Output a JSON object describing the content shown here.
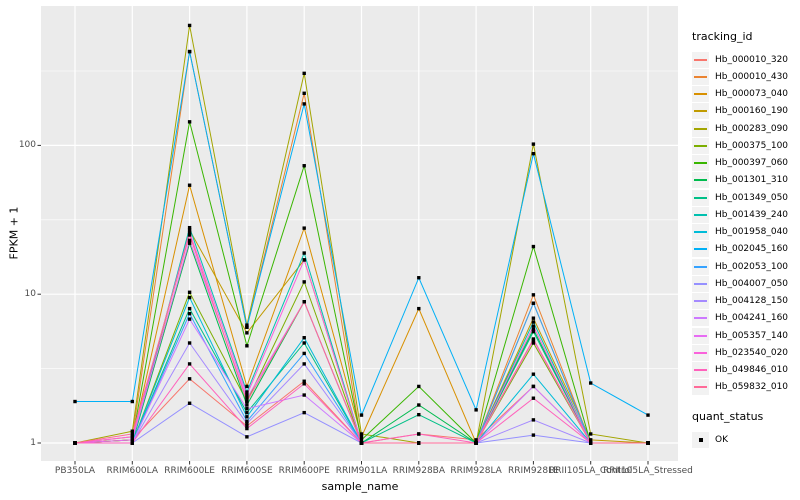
{
  "chart_data": {
    "type": "line",
    "xlabel": "sample_name",
    "ylabel": "FPKM + 1",
    "y_scale": "log10",
    "y_ticks": [
      1,
      10,
      100
    ],
    "y_tick_labels": [
      "1",
      "10",
      "100"
    ],
    "y_minor_ticks": [
      3.1623,
      31.623,
      316.23
    ],
    "grid": true,
    "panel_bg": "#EBEBEB",
    "grid_color": "#FFFFFF",
    "point_color": "#000000",
    "axis_text_color": "#4d4d4d",
    "categories": [
      "PB350LA",
      "RRIM600LA",
      "RRIM600LE",
      "RRIM600SE",
      "RRIM600PE",
      "RRIM901LA",
      "RRIM928BA",
      "RRIM928LA",
      "RRIM928LE",
      "RRII105LA_Control",
      "RRII105LA_Stressed"
    ],
    "legend": {
      "title": "tracking_id",
      "position": "right"
    },
    "quant_legend": {
      "title": "quant_status",
      "items": [
        {
          "label": "OK",
          "marker": "black-square"
        }
      ]
    },
    "series": [
      {
        "name": "Hb_000010_320",
        "color": "#F8766D",
        "values": [
          1,
          1.05,
          2.7,
          1.3,
          2.6,
          1,
          1.15,
          1.05,
          2.4,
          1,
          1
        ]
      },
      {
        "name": "Hb_000010_430",
        "color": "#EA8331",
        "values": [
          1,
          1.1,
          427,
          6.0,
          224,
          1,
          1,
          1,
          9.9,
          1,
          1
        ]
      },
      {
        "name": "Hb_000073_040",
        "color": "#D89000",
        "values": [
          1,
          1.05,
          54,
          2.4,
          27.8,
          1.1,
          8.0,
          1,
          8.7,
          1,
          1
        ]
      },
      {
        "name": "Hb_000160_190",
        "color": "#C09B00",
        "values": [
          1,
          1,
          27,
          5.5,
          17,
          1,
          1,
          1,
          6.9,
          1.05,
          1
        ]
      },
      {
        "name": "Hb_000283_090",
        "color": "#A3A500",
        "values": [
          1,
          1.2,
          640,
          6.2,
          305,
          1.15,
          1,
          1,
          102,
          1.15,
          1
        ]
      },
      {
        "name": "Hb_000375_100",
        "color": "#7CAE00",
        "values": [
          1,
          1,
          10.3,
          1.9,
          12.1,
          1,
          1,
          1,
          4.7,
          1,
          1
        ]
      },
      {
        "name": "Hb_000397_060",
        "color": "#39B600",
        "values": [
          1,
          1.05,
          144,
          4.5,
          73,
          1.05,
          2.4,
          1,
          20.9,
          1,
          1
        ]
      },
      {
        "name": "Hb_001301_310",
        "color": "#00BB4E",
        "values": [
          1,
          1,
          22,
          1.8,
          8.9,
          1,
          1.8,
          1,
          5.8,
          1,
          1
        ]
      },
      {
        "name": "Hb_001349_050",
        "color": "#00C087",
        "values": [
          1,
          1,
          8.0,
          1.6,
          4.7,
          1,
          1.55,
          1,
          5.6,
          1,
          1
        ]
      },
      {
        "name": "Hb_001439_240",
        "color": "#00C0AF",
        "values": [
          1,
          1,
          28,
          2.2,
          18.9,
          1,
          1,
          1,
          6.5,
          1,
          1
        ]
      },
      {
        "name": "Hb_001958_040",
        "color": "#00BCD8",
        "values": [
          1,
          1,
          9.5,
          1.5,
          5.1,
          1,
          1,
          1,
          2.9,
          1,
          1
        ]
      },
      {
        "name": "Hb_002045_160",
        "color": "#00B0F6",
        "values": [
          1.9,
          1.9,
          427,
          6.0,
          190,
          1.54,
          12.9,
          1.67,
          88,
          2.53,
          1.54
        ]
      },
      {
        "name": "Hb_002053_100",
        "color": "#35A2FF",
        "values": [
          1,
          1,
          7.4,
          1.4,
          4.0,
          1,
          1,
          1,
          8.7,
          1,
          1
        ]
      },
      {
        "name": "Hb_004007_050",
        "color": "#9590FF",
        "values": [
          1,
          1,
          1.85,
          1.1,
          1.6,
          1,
          1,
          1,
          1.13,
          1,
          1
        ]
      },
      {
        "name": "Hb_004128_150",
        "color": "#A58AFF",
        "values": [
          1,
          1,
          4.7,
          1.35,
          3.4,
          1,
          1,
          1,
          1.43,
          1,
          1
        ]
      },
      {
        "name": "Hb_004241_160",
        "color": "#CD79FF",
        "values": [
          1,
          1,
          6.8,
          1.7,
          2.1,
          1,
          1,
          1,
          2.4,
          1,
          1
        ]
      },
      {
        "name": "Hb_005357_140",
        "color": "#E76BF3",
        "values": [
          1,
          1.05,
          23,
          2.0,
          8.9,
          1,
          1,
          1,
          4.9,
          1,
          1
        ]
      },
      {
        "name": "Hb_023540_020",
        "color": "#FA62DB",
        "values": [
          1,
          1.1,
          26,
          2.1,
          17,
          1,
          1,
          1,
          6.1,
          1,
          1
        ]
      },
      {
        "name": "Hb_049846_010",
        "color": "#FF62BC",
        "values": [
          1,
          1,
          3.4,
          1.25,
          2.5,
          1,
          1.15,
          1,
          2.0,
          1,
          1
        ]
      },
      {
        "name": "Hb_059832_010",
        "color": "#FF6A98",
        "values": [
          1,
          1.15,
          25,
          1.9,
          8.9,
          1,
          1,
          1,
          5.0,
          1,
          1
        ]
      }
    ]
  }
}
